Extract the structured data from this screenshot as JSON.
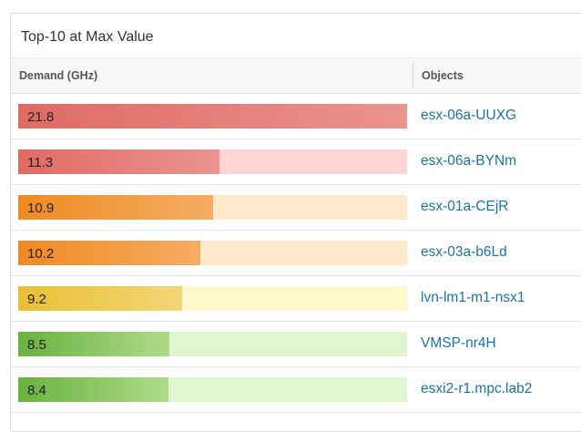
{
  "widget": {
    "title": "Top-10 at Max Value",
    "columns": {
      "demand": "Demand (GHz)",
      "objects": "Objects"
    },
    "max_value": 21.8,
    "rows": [
      {
        "value": 21.8,
        "label": "21.8",
        "object": "esx-06a-UUXG",
        "colors": [
          "#e06a64",
          "#ea948f"
        ],
        "track": "#ffd6d4"
      },
      {
        "value": 11.3,
        "label": "11.3",
        "object": "esx-06a-BYNm",
        "colors": [
          "#e06a64",
          "#ea948f"
        ],
        "track": "#ffd6d4"
      },
      {
        "value": 10.9,
        "label": "10.9",
        "object": "esx-01a-CEjR",
        "colors": [
          "#ef8a22",
          "#f5ad63"
        ],
        "track": "#ffe8cc"
      },
      {
        "value": 10.2,
        "label": "10.2",
        "object": "esx-03a-b6Ld",
        "colors": [
          "#ef8a22",
          "#f5ad63"
        ],
        "track": "#ffe8cc"
      },
      {
        "value": 9.2,
        "label": "9.2",
        "object": "lvn-lm1-m1-nsx1",
        "colors": [
          "#e9bf34",
          "#f2d777"
        ],
        "track": "#fff8cc"
      },
      {
        "value": 8.5,
        "label": "8.5",
        "object": "VMSP-nr4H",
        "colors": [
          "#6ab23f",
          "#aedb8a"
        ],
        "track": "#e0f6d0"
      },
      {
        "value": 8.4,
        "label": "8.4",
        "object": "esxi2-r1.mpc.lab2",
        "colors": [
          "#6ab23f",
          "#aedb8a"
        ],
        "track": "#e0f6d0"
      }
    ]
  }
}
